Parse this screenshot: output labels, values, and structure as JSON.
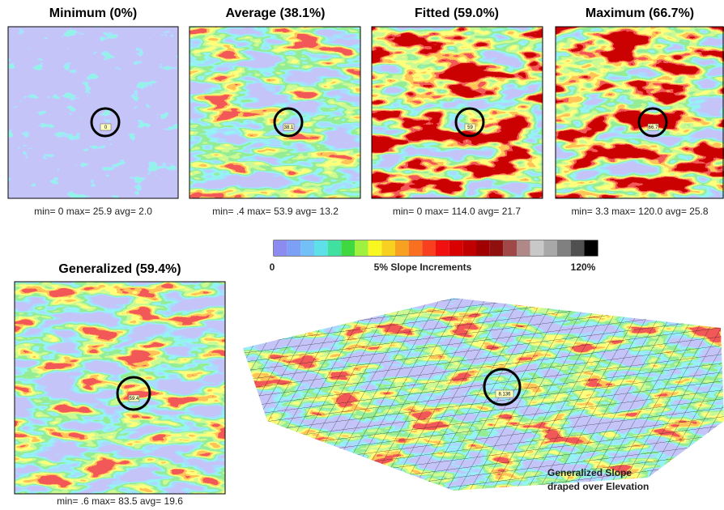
{
  "panels": [
    {
      "title": "Minimum (0%)",
      "stats": "min= 0 max= 25.9 avg= 2.0",
      "probe": "0"
    },
    {
      "title": "Average (38.1%)",
      "stats": "min= .4 max= 53.9 avg= 13.2",
      "probe": "38.1"
    },
    {
      "title": "Fitted (59.0%)",
      "stats": "min= 0 max= 114.0 avg= 21.7",
      "probe": "59"
    },
    {
      "title": "Maximum (66.7%)",
      "stats": "min= 3.3 max= 120.0 avg= 25.8",
      "probe": "66.7"
    },
    {
      "title": "Generalized (59.4%)",
      "stats": "min= .6 max= 83.5 avg= 19.6",
      "probe": "59.4"
    }
  ],
  "legend": {
    "min_label": "0",
    "title": "5% Slope Increments",
    "max_label": "120%",
    "colors": [
      "#8c8cf0",
      "#7ba0f5",
      "#73c0f8",
      "#5ee0e8",
      "#40e0a0",
      "#40d840",
      "#a0f040",
      "#f8f820",
      "#f8d020",
      "#f8a020",
      "#f87020",
      "#f84020",
      "#f01010",
      "#d80000",
      "#c00000",
      "#a00000",
      "#901010",
      "#a04848",
      "#b08888",
      "#c8c8c8",
      "#a8a8a8",
      "#808080",
      "#505050",
      "#000000"
    ]
  },
  "surface": {
    "probe": "8.136",
    "caption_lines": [
      "Generalized Slope",
      "draped over Elevation"
    ]
  }
}
